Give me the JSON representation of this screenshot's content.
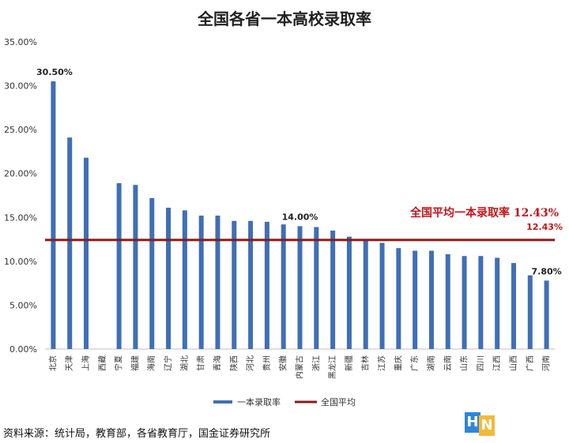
{
  "chart_data": {
    "type": "bar",
    "title": "全国各省一本高校录取率",
    "categories": [
      "北京",
      "天津",
      "上海",
      "西藏",
      "宁夏",
      "福建",
      "海南",
      "辽宁",
      "湖北",
      "甘肃",
      "青海",
      "陕西",
      "河北",
      "贵州",
      "安徽",
      "内蒙古",
      "浙江",
      "黑龙江",
      "新疆",
      "吉林",
      "江苏",
      "重庆",
      "广东",
      "湖南",
      "云南",
      "山东",
      "四川",
      "江西",
      "山西",
      "广西",
      "河南"
    ],
    "series": [
      {
        "name": "一本录取率",
        "color": "#3f6fb5",
        "values": [
          30.5,
          24.1,
          21.8,
          null,
          18.9,
          18.7,
          17.2,
          16.1,
          15.8,
          15.2,
          15.2,
          14.6,
          14.6,
          14.5,
          14.2,
          14.0,
          13.9,
          13.5,
          12.8,
          12.4,
          12.1,
          11.5,
          11.2,
          11.2,
          10.8,
          10.6,
          10.6,
          10.4,
          9.8,
          8.4,
          7.8
        ]
      },
      {
        "name": "全国平均",
        "color": "#8b1a1a",
        "value": 12.43
      }
    ],
    "ylim": [
      0,
      35
    ],
    "yticks": [
      "0.00%",
      "5.00%",
      "10.00%",
      "15.00%",
      "20.00%",
      "25.00%",
      "30.00%",
      "35.00%"
    ],
    "data_labels": [
      {
        "index": 0,
        "text": "30.50%"
      },
      {
        "index": 15,
        "text": "14.00%"
      },
      {
        "index": 30,
        "text": "7.80%"
      }
    ],
    "average_annotation": "全国平均一本录取率 12.43%",
    "average_label": "12.43%",
    "grid": false,
    "legend_position": "bottom"
  },
  "source": "资料来源：统计局，教育部，各省教育厅，国金证券研究所",
  "logo": {
    "h": "H",
    "n": "N"
  }
}
